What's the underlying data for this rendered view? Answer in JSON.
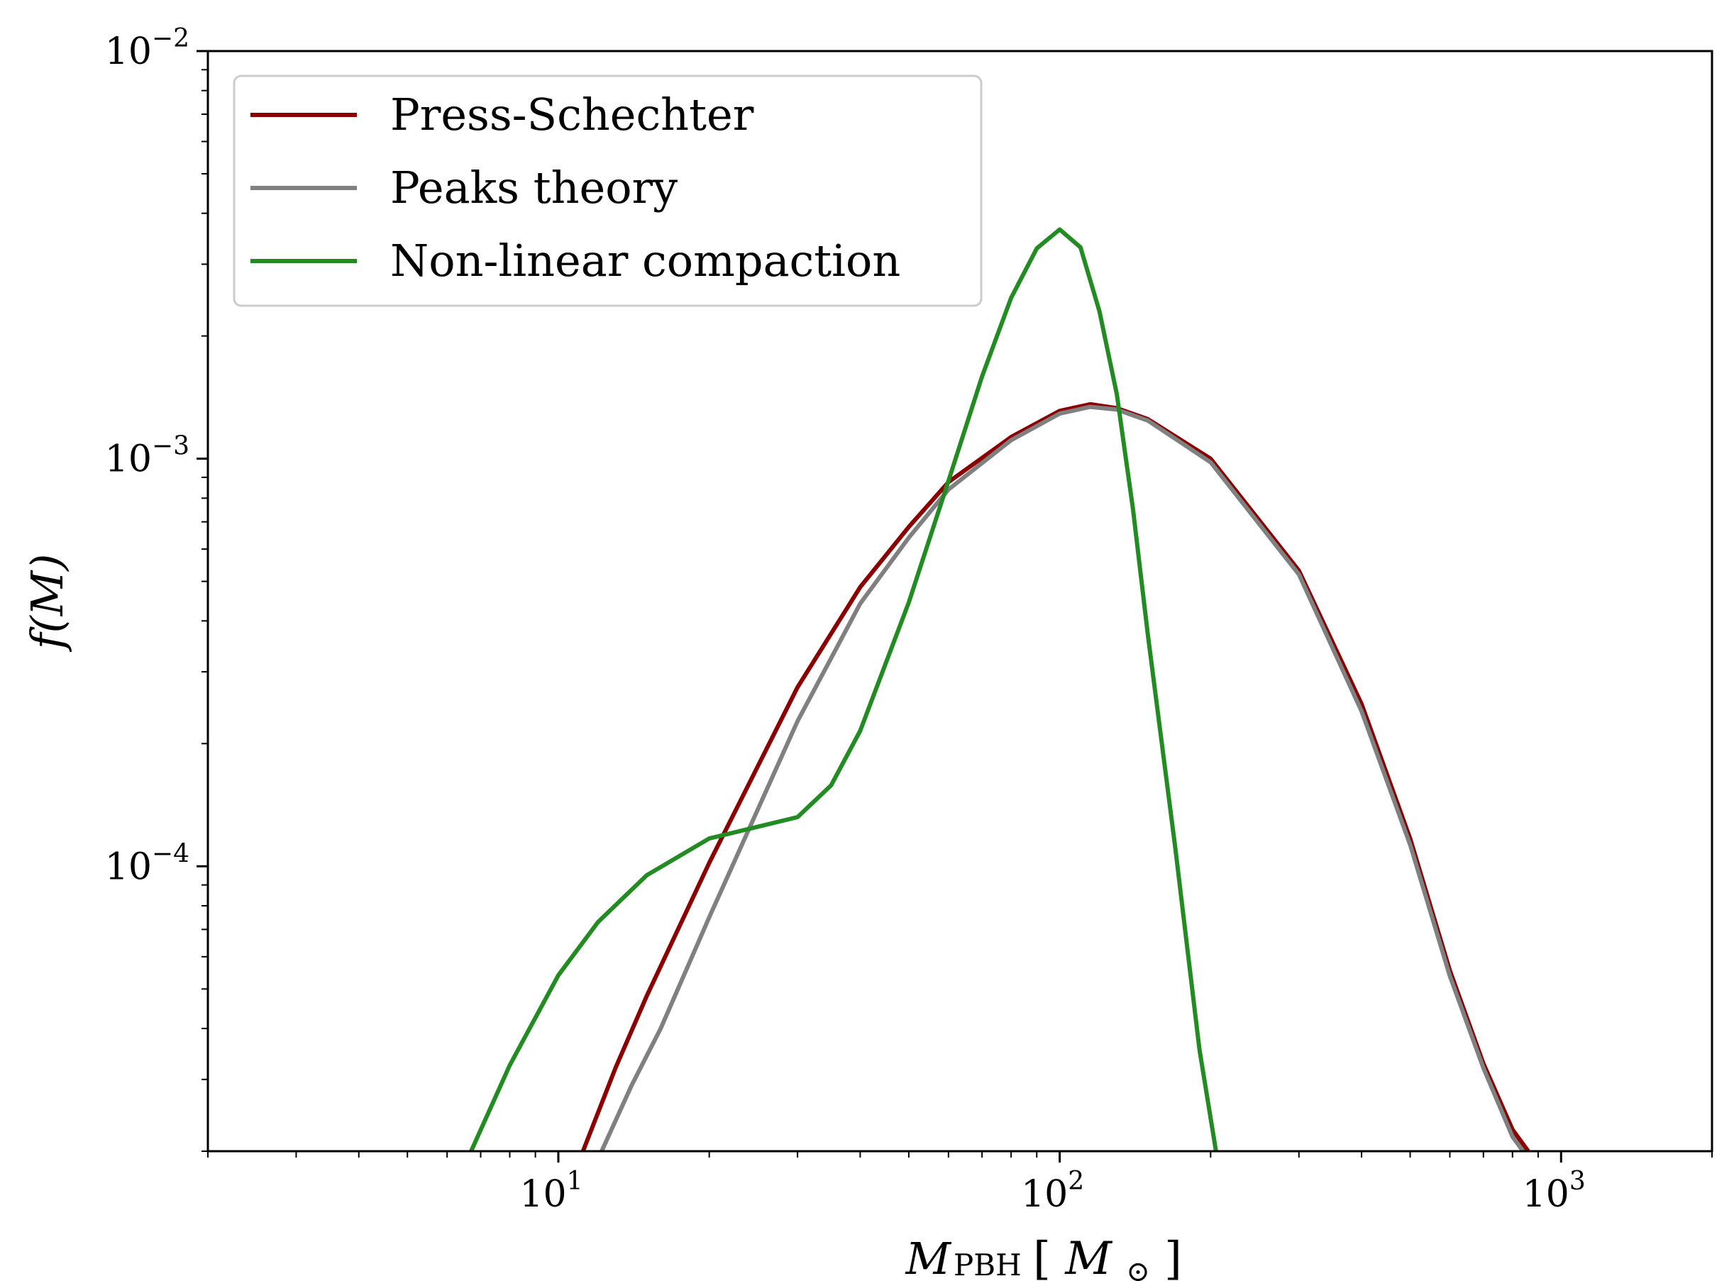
{
  "chart_data": {
    "type": "line",
    "title": "",
    "xlabel": "M_PBH [M_⊙]",
    "xlabel_parts": {
      "main": "M",
      "sub": "PBH",
      "open": "[",
      "unit": "M",
      "unit_sub": "⊙",
      "close": "]"
    },
    "ylabel": "f(M)",
    "xscale": "log",
    "yscale": "log",
    "xlim": [
      2,
      2000
    ],
    "ylim": [
      2e-05,
      0.01
    ],
    "grid": false,
    "legend_position": "top-left",
    "x_ticks": [
      {
        "value": 10,
        "base": "10",
        "exp": "1"
      },
      {
        "value": 100,
        "base": "10",
        "exp": "2"
      },
      {
        "value": 1000,
        "base": "10",
        "exp": "3"
      }
    ],
    "y_ticks": [
      {
        "value": 0.0001,
        "base": "10",
        "exp": "−4"
      },
      {
        "value": 0.001,
        "base": "10",
        "exp": "−3"
      },
      {
        "value": 0.01,
        "base": "10",
        "exp": "−2"
      }
    ],
    "series": [
      {
        "name": "Press-Schechter",
        "color": "#8b0000",
        "points": [
          [
            11.2,
            2e-05
          ],
          [
            13,
            3.2e-05
          ],
          [
            15,
            4.8e-05
          ],
          [
            20,
            0.000102
          ],
          [
            30,
            0.000275
          ],
          [
            40,
            0.000484
          ],
          [
            50,
            0.00068
          ],
          [
            60,
            0.000876
          ],
          [
            80,
            0.00113
          ],
          [
            100,
            0.00131
          ],
          [
            115,
            0.00136
          ],
          [
            130,
            0.00133
          ],
          [
            150,
            0.00125
          ],
          [
            200,
            0.001
          ],
          [
            300,
            0.000531
          ],
          [
            400,
            0.00025
          ],
          [
            500,
            0.000117
          ],
          [
            600,
            5.55e-05
          ],
          [
            700,
            3.28e-05
          ],
          [
            800,
            2.26e-05
          ],
          [
            860,
            2e-05
          ]
        ]
      },
      {
        "name": "Peaks theory",
        "color": "#808080",
        "points": [
          [
            12.2,
            2e-05
          ],
          [
            14,
            2.9e-05
          ],
          [
            16,
            4e-05
          ],
          [
            20,
            7.5e-05
          ],
          [
            30,
            0.000227
          ],
          [
            40,
            0.000441
          ],
          [
            50,
            0.00064
          ],
          [
            60,
            0.00084
          ],
          [
            80,
            0.00111
          ],
          [
            100,
            0.00129
          ],
          [
            115,
            0.00134
          ],
          [
            130,
            0.00132
          ],
          [
            150,
            0.00124
          ],
          [
            200,
            0.00098
          ],
          [
            300,
            0.00052
          ],
          [
            400,
            0.00024
          ],
          [
            500,
            0.000113
          ],
          [
            600,
            5.38e-05
          ],
          [
            700,
            3.2e-05
          ],
          [
            800,
            2.17e-05
          ],
          [
            840,
            2e-05
          ]
        ]
      },
      {
        "name": "Non-linear compaction",
        "color": "#228b22",
        "points": [
          [
            6.7,
            2e-05
          ],
          [
            8,
            3.25e-05
          ],
          [
            10,
            5.4e-05
          ],
          [
            12,
            7.3e-05
          ],
          [
            15,
            9.5e-05
          ],
          [
            20,
            0.000117
          ],
          [
            25,
            0.000125
          ],
          [
            30,
            0.000132
          ],
          [
            35,
            0.000158
          ],
          [
            40,
            0.000215
          ],
          [
            50,
            0.000444
          ],
          [
            60,
            0.000882
          ],
          [
            70,
            0.00159
          ],
          [
            80,
            0.00248
          ],
          [
            90,
            0.00328
          ],
          [
            100,
            0.00365
          ],
          [
            110,
            0.0033
          ],
          [
            120,
            0.0023
          ],
          [
            130,
            0.00144
          ],
          [
            140,
            0.000752
          ],
          [
            150,
            0.000368
          ],
          [
            170,
            0.000111
          ],
          [
            190,
            3.55e-05
          ],
          [
            205,
            2e-05
          ]
        ]
      }
    ]
  }
}
